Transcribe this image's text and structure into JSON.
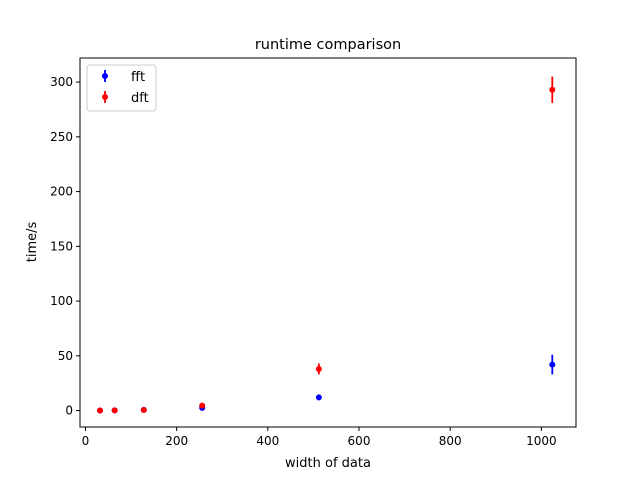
{
  "chart_data": {
    "type": "scatter",
    "title": "runtime comparison",
    "xlabel": "width of data",
    "ylabel": "time/s",
    "xlim": [
      -12,
      1076
    ],
    "ylim": [
      -15,
      322
    ],
    "xticks": [
      0,
      200,
      400,
      600,
      800,
      1000
    ],
    "yticks": [
      0,
      50,
      100,
      150,
      200,
      250,
      300
    ],
    "grid": false,
    "legend_position": "top-left",
    "series": [
      {
        "name": "fft",
        "color": "#0000ff",
        "points": [
          {
            "x": 32,
            "y": 0.1,
            "err": 0.3
          },
          {
            "x": 64,
            "y": 0.2,
            "err": 0.3
          },
          {
            "x": 128,
            "y": 0.6,
            "err": 0.5
          },
          {
            "x": 256,
            "y": 2.5,
            "err": 1.5
          },
          {
            "x": 512,
            "y": 12,
            "err": 2.5
          },
          {
            "x": 1024,
            "y": 42,
            "err": 9
          }
        ]
      },
      {
        "name": "dft",
        "color": "#ff0000",
        "points": [
          {
            "x": 32,
            "y": 0.1,
            "err": 0.3
          },
          {
            "x": 64,
            "y": 0.2,
            "err": 0.3
          },
          {
            "x": 128,
            "y": 0.5,
            "err": 0.5
          },
          {
            "x": 256,
            "y": 4.5,
            "err": 2
          },
          {
            "x": 512,
            "y": 38,
            "err": 5
          },
          {
            "x": 1024,
            "y": 293,
            "err": 12
          }
        ]
      }
    ]
  }
}
